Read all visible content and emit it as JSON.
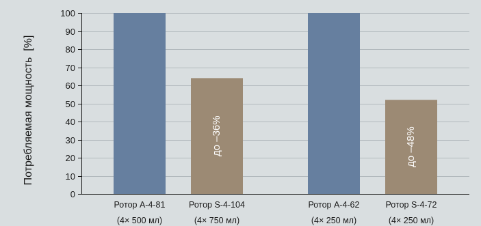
{
  "chart_data": {
    "type": "bar",
    "title": "",
    "xlabel": "",
    "ylabel": "Потребляемая мощность  [%]",
    "ylim": [
      0,
      100
    ],
    "yticks": [
      0,
      10,
      20,
      30,
      40,
      50,
      60,
      70,
      80,
      90,
      100
    ],
    "grid": true,
    "categories": [
      {
        "line1": "Ротор A-4-81",
        "line2": "(4× 500 мл)"
      },
      {
        "line1": "Ротор S-4-104",
        "line2": "(4× 750 мл)"
      },
      {
        "line1": "Ротор A-4-62",
        "line2": "(4× 250 мл)"
      },
      {
        "line1": "Ротор S-4-72",
        "line2": "(4× 250 мл)"
      }
    ],
    "values": [
      100,
      64,
      100,
      52
    ],
    "bar_colors": [
      "#667f9f",
      "#9c8a74",
      "#667f9f",
      "#9c8a74"
    ],
    "annotations": [
      "",
      "до –36%",
      "",
      "до –48%"
    ]
  }
}
